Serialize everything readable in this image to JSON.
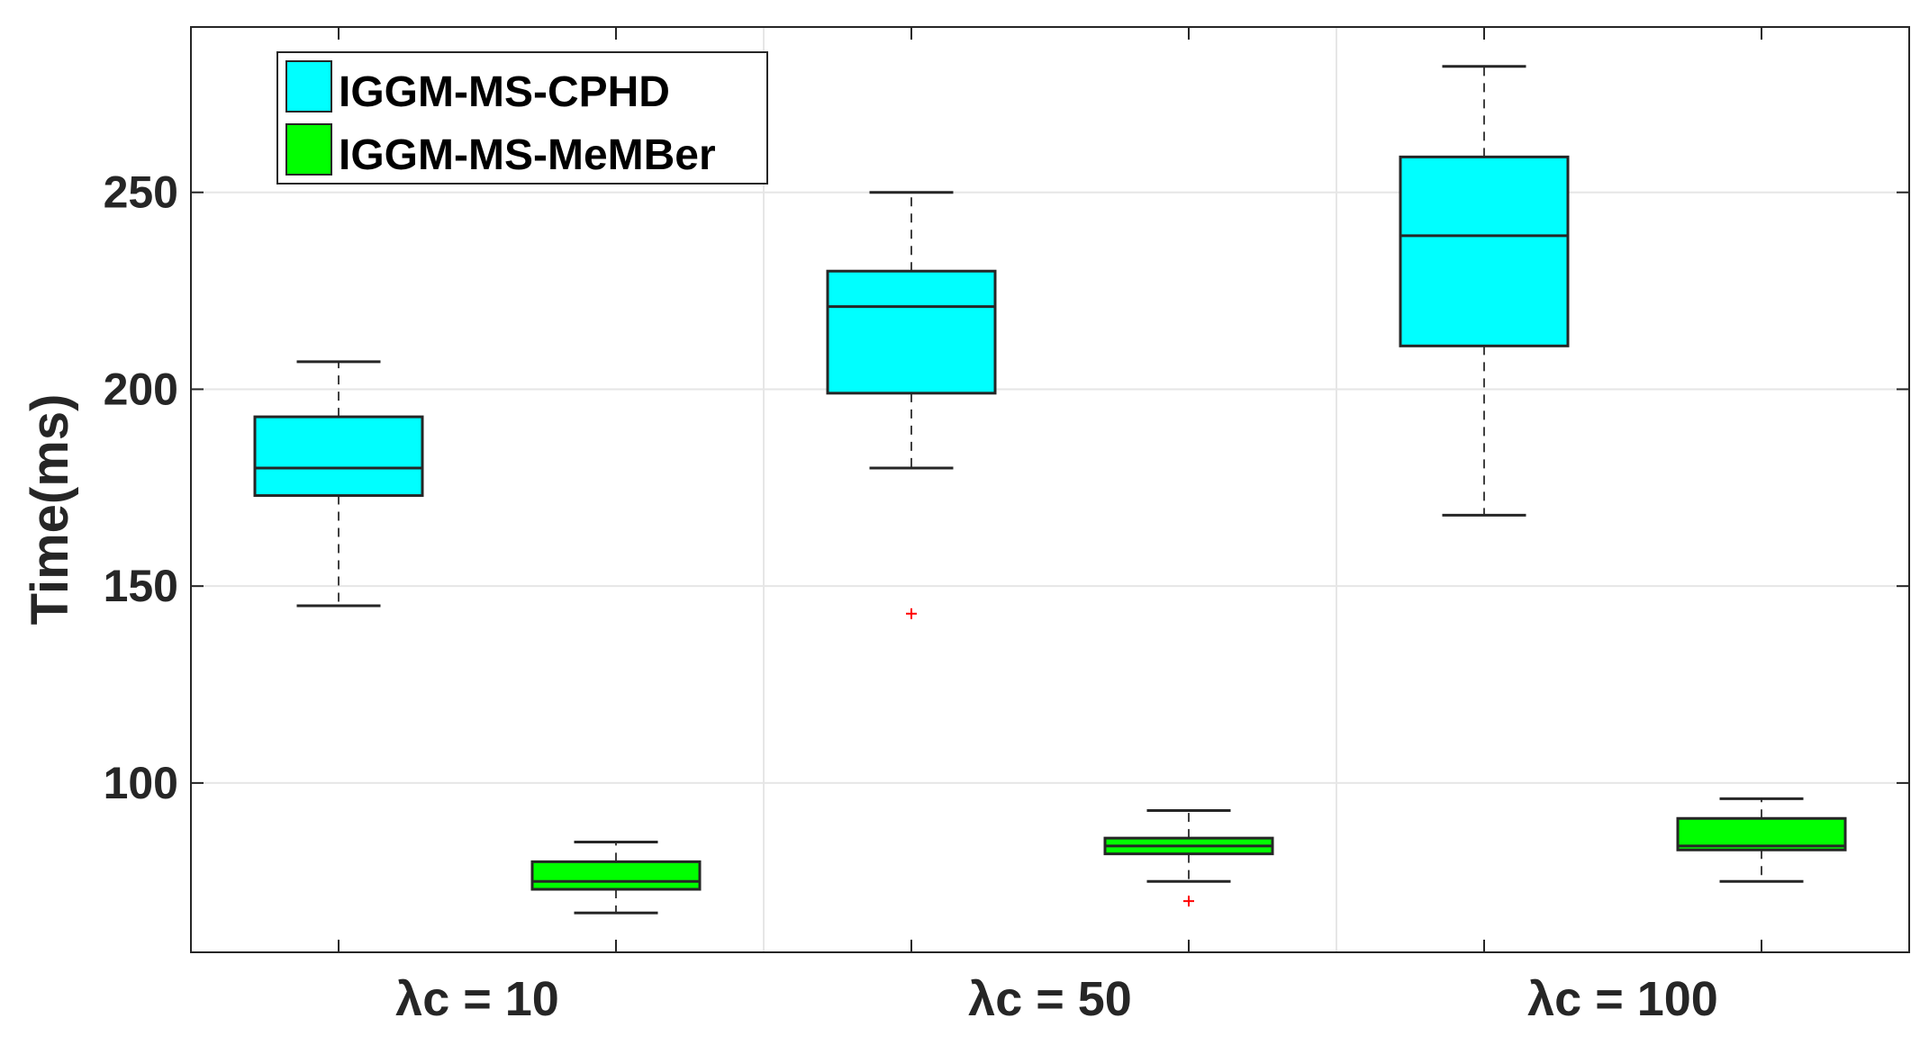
{
  "chart_data": {
    "type": "boxplot",
    "categories": [
      "λc = 10",
      "λc = 50",
      "λc = 100"
    ],
    "ylabel": "Time(ms)",
    "xlabel": "",
    "ylim": [
      57,
      292
    ],
    "yticks": [
      100,
      150,
      200,
      250
    ],
    "grid": true,
    "legend_position": "top-left",
    "series": [
      {
        "name": "IGGM-MS-CPHD",
        "color": "#00FFFF",
        "boxes": [
          {
            "whisker_low": 145,
            "q1": 173,
            "median": 180,
            "q3": 193,
            "whisker_high": 207,
            "outliers": []
          },
          {
            "whisker_low": 180,
            "q1": 199,
            "median": 221,
            "q3": 230,
            "whisker_high": 250,
            "outliers": [
              143
            ]
          },
          {
            "whisker_low": 168,
            "q1": 211,
            "median": 239,
            "q3": 259,
            "whisker_high": 282,
            "outliers": []
          }
        ]
      },
      {
        "name": "IGGM-MS-MeMBer",
        "color": "#00FF00",
        "boxes": [
          {
            "whisker_low": 67,
            "q1": 73,
            "median": 75,
            "q3": 80,
            "whisker_high": 85,
            "outliers": []
          },
          {
            "whisker_low": 75,
            "q1": 82,
            "median": 84,
            "q3": 86,
            "whisker_high": 93,
            "outliers": [
              70
            ]
          },
          {
            "whisker_low": 75,
            "q1": 83,
            "median": 84,
            "q3": 91,
            "whisker_high": 96,
            "outliers": []
          }
        ]
      }
    ]
  }
}
